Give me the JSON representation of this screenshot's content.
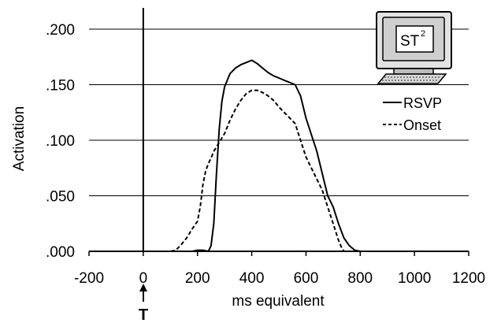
{
  "chart_data": {
    "type": "line",
    "xlabel": "ms equivalent",
    "ylabel": "Activation",
    "xlim": [
      -200,
      1200
    ],
    "ylim": [
      0,
      0.2
    ],
    "x_ticks": [
      -200,
      0,
      200,
      400,
      600,
      800,
      1000,
      1200
    ],
    "x_tick_labels": [
      "-200",
      "0",
      "200",
      "400",
      "600",
      "800",
      "1000",
      "1200"
    ],
    "y_ticks": [
      0,
      0.05,
      0.1,
      0.15,
      0.2
    ],
    "y_tick_labels": [
      ".000",
      ".050",
      ".100",
      ".150",
      ".200"
    ],
    "grid": "horizontal",
    "legend_position": "right",
    "annotation": {
      "label": "T",
      "x": 0
    },
    "badge": {
      "label": "ST",
      "superscript": "2"
    },
    "series": [
      {
        "name": "RSVP",
        "style": "solid",
        "color": "#000000",
        "x": [
          -200,
          180,
          200,
          220,
          240,
          250,
          260,
          270,
          280,
          290,
          300,
          320,
          340,
          360,
          380,
          400,
          420,
          440,
          460,
          480,
          500,
          520,
          540,
          560,
          580,
          600,
          620,
          640,
          660,
          680,
          700,
          720,
          740,
          760,
          780,
          800,
          1200
        ],
        "y": [
          0,
          0,
          0.001,
          0.001,
          0.0,
          0.005,
          0.025,
          0.07,
          0.11,
          0.135,
          0.148,
          0.16,
          0.165,
          0.168,
          0.17,
          0.172,
          0.169,
          0.165,
          0.161,
          0.158,
          0.156,
          0.154,
          0.152,
          0.15,
          0.14,
          0.12,
          0.105,
          0.09,
          0.07,
          0.05,
          0.04,
          0.025,
          0.012,
          0.005,
          0.001,
          0,
          0
        ]
      },
      {
        "name": "Onset",
        "style": "dashed",
        "color": "#000000",
        "x": [
          -200,
          100,
          120,
          140,
          160,
          180,
          200,
          210,
          220,
          230,
          240,
          250,
          260,
          280,
          300,
          320,
          340,
          360,
          380,
          400,
          420,
          440,
          460,
          480,
          500,
          520,
          540,
          560,
          580,
          600,
          620,
          640,
          660,
          680,
          700,
          720,
          730,
          740,
          1200
        ],
        "y": [
          0,
          0,
          0.001,
          0.006,
          0.012,
          0.02,
          0.027,
          0.04,
          0.06,
          0.072,
          0.079,
          0.084,
          0.09,
          0.098,
          0.106,
          0.118,
          0.128,
          0.136,
          0.142,
          0.145,
          0.145,
          0.143,
          0.14,
          0.136,
          0.13,
          0.125,
          0.12,
          0.115,
          0.1,
          0.085,
          0.075,
          0.065,
          0.055,
          0.04,
          0.025,
          0.01,
          0.004,
          0,
          0
        ]
      }
    ]
  }
}
